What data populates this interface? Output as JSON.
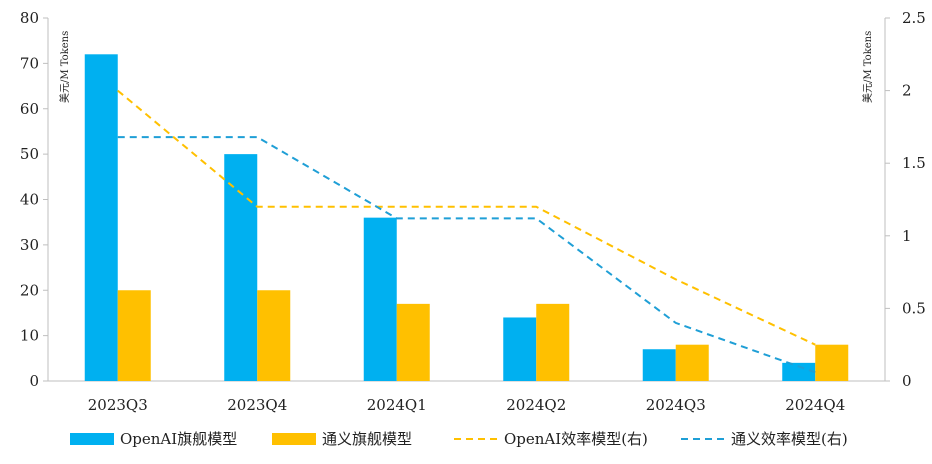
{
  "chart_data": {
    "type": "bar",
    "categories": [
      "2023Q3",
      "2023Q4",
      "2024Q1",
      "2024Q2",
      "2024Q3",
      "2024Q4"
    ],
    "series": [
      {
        "name": "OpenAI旗舰模型",
        "kind": "bar",
        "axis": "left",
        "color": "#00B0F0",
        "values": [
          72,
          50,
          36,
          14,
          7,
          4
        ]
      },
      {
        "name": "通义旗舰模型",
        "kind": "bar",
        "axis": "left",
        "color": "#FFC000",
        "values": [
          20,
          20,
          17,
          17,
          8,
          8
        ]
      },
      {
        "name": "OpenAI效率模型(右)",
        "kind": "line",
        "dashed": true,
        "axis": "right",
        "color": "#FFC000",
        "values": [
          2.0,
          1.2,
          1.2,
          1.2,
          0.7,
          0.25
        ]
      },
      {
        "name": "通义效率模型(右)",
        "kind": "line",
        "dashed": true,
        "axis": "right",
        "color": "#1F9FD6",
        "values": [
          1.68,
          1.68,
          1.12,
          1.12,
          0.4,
          0.06
        ]
      }
    ],
    "y_left": {
      "unit_label": "美元/M Tokens",
      "min": 0,
      "max": 80,
      "ticks": [
        0,
        10,
        20,
        30,
        40,
        50,
        60,
        70,
        80
      ]
    },
    "y_right": {
      "unit_label": "美元/M Tokens",
      "min": 0,
      "max": 2.5,
      "ticks": [
        "0",
        "0.5",
        "1",
        "1.5",
        "2",
        "2.5"
      ]
    },
    "grid": false,
    "legend": "bottom"
  }
}
